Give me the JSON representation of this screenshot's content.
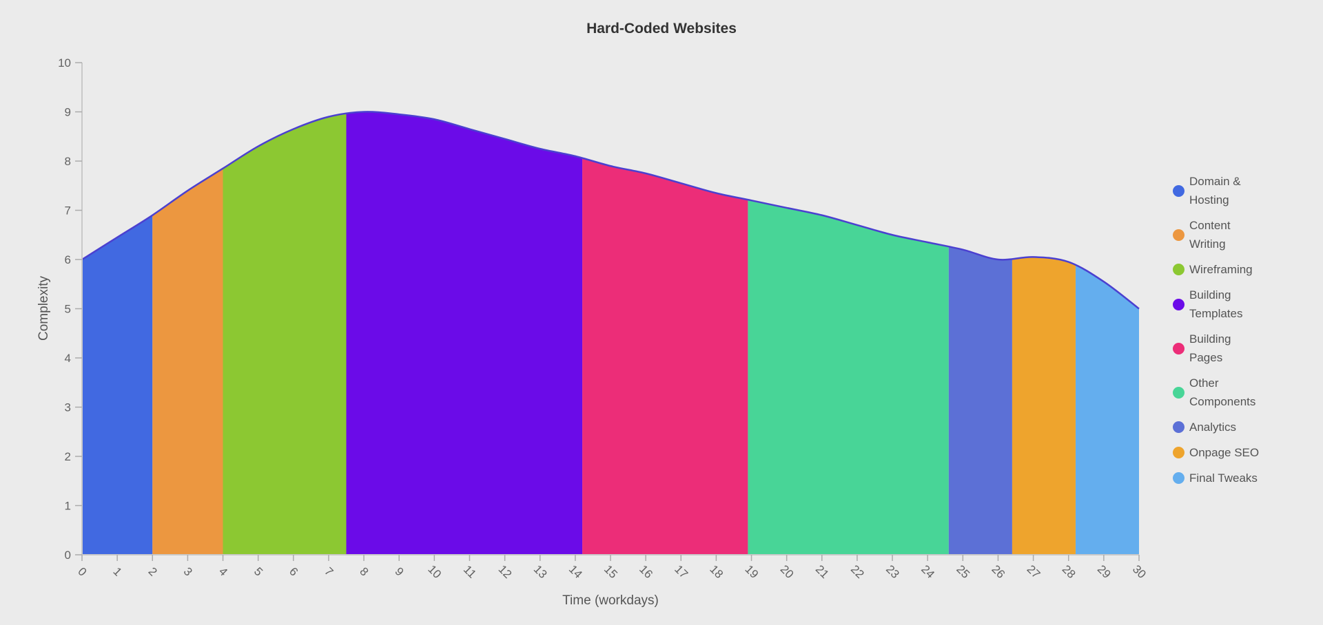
{
  "chart_data": {
    "type": "area",
    "title": "Hard-Coded Websites",
    "xlabel": "Time (workdays)",
    "ylabel": "Complexity",
    "xlim": [
      0,
      30
    ],
    "ylim": [
      0,
      10
    ],
    "x_tick_interval": 1,
    "y_tick_interval": 1,
    "legend_position": "right",
    "grid": false,
    "line_color": "#4B40D0",
    "x": [
      0,
      1,
      2,
      3,
      4,
      5,
      6,
      7,
      8,
      9,
      10,
      11,
      12,
      13,
      14,
      15,
      16,
      17,
      18,
      19,
      20,
      21,
      22,
      23,
      24,
      25,
      26,
      27,
      28,
      29,
      30
    ],
    "y": [
      6.0,
      6.45,
      6.9,
      7.4,
      7.85,
      8.3,
      8.65,
      8.9,
      9.0,
      8.95,
      8.85,
      8.65,
      8.45,
      8.25,
      8.1,
      7.9,
      7.75,
      7.55,
      7.35,
      7.2,
      7.05,
      6.9,
      6.7,
      6.5,
      6.35,
      6.2,
      6.0,
      6.05,
      5.95,
      5.55,
      5.0
    ],
    "phases": [
      {
        "name": "Domain & Hosting",
        "color": "#4169E1",
        "x_start": 0,
        "x_end": 2
      },
      {
        "name": "Content Writing",
        "color": "#EC9740",
        "x_start": 2,
        "x_end": 4
      },
      {
        "name": "Wireframing",
        "color": "#8CC832",
        "x_start": 4,
        "x_end": 7.5
      },
      {
        "name": "Building Templates",
        "color": "#6B0BE8",
        "x_start": 7.5,
        "x_end": 14.2
      },
      {
        "name": "Building Pages",
        "color": "#EC2D78",
        "x_start": 14.2,
        "x_end": 18.9
      },
      {
        "name": "Other Components",
        "color": "#48D597",
        "x_start": 18.9,
        "x_end": 24.6
      },
      {
        "name": "Analytics",
        "color": "#5C70D6",
        "x_start": 24.6,
        "x_end": 26.4
      },
      {
        "name": "Onpage SEO",
        "color": "#EEA42D",
        "x_start": 26.4,
        "x_end": 28.2
      },
      {
        "name": "Final Tweaks",
        "color": "#64AEEE",
        "x_start": 28.2,
        "x_end": 30
      }
    ],
    "style": {
      "background": "#EBEBEB",
      "title_color": "#333333",
      "axis_title_color": "#555555",
      "tick_label_color": "#616161",
      "axis_line_color": "#C9C9C9",
      "tick_mark_color": "#ABABAB",
      "legend_text_color": "#545454"
    }
  }
}
